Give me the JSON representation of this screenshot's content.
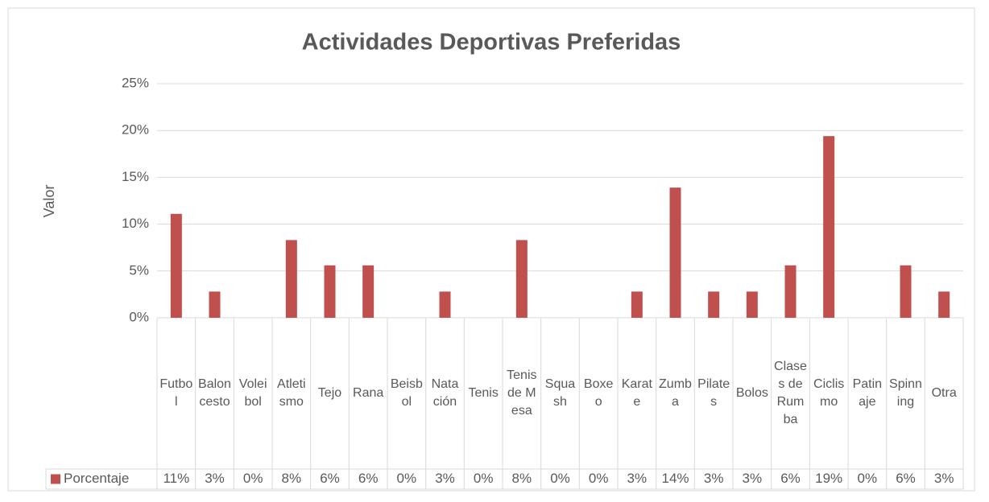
{
  "chart_data": {
    "type": "bar",
    "title": "Actividades Deportivas Preferidas",
    "y_label": "Valor",
    "categories": [
      "Futbol",
      "Baloncesto",
      "Voleibol",
      "Atletismo",
      "Tejo",
      "Rana",
      "Beisbol",
      "Natación",
      "Tenis",
      "Tenis de Mesa",
      "Squash",
      "Boxeo",
      "Karate",
      "Zumba",
      "Pilates",
      "Bolos",
      "Clases de Rumba",
      "Ciclismo",
      "Patinaje",
      "Spinning",
      "Otra"
    ],
    "series": [
      {
        "name": "Porcentaje",
        "color": "#c0504d",
        "values": [
          11.1,
          2.8,
          0,
          8.3,
          5.6,
          5.6,
          0,
          2.8,
          0,
          8.3,
          0,
          0,
          2.8,
          13.9,
          2.8,
          2.8,
          5.6,
          19.4,
          0,
          5.6,
          2.8
        ],
        "value_labels": [
          "11%",
          "3%",
          "0%",
          "8%",
          "6%",
          "6%",
          "0%",
          "3%",
          "0%",
          "8%",
          "0%",
          "0%",
          "3%",
          "14%",
          "3%",
          "3%",
          "6%",
          "19%",
          "0%",
          "6%",
          "3%"
        ]
      }
    ],
    "ylim": [
      0,
      25
    ],
    "yticks": [
      {
        "value": 0,
        "label": "0%"
      },
      {
        "value": 5,
        "label": "5%"
      },
      {
        "value": 10,
        "label": "10%"
      },
      {
        "value": 15,
        "label": "15%"
      },
      {
        "value": 20,
        "label": "20%"
      },
      {
        "value": 25,
        "label": "25%"
      }
    ],
    "grid": true,
    "data_table": true
  }
}
